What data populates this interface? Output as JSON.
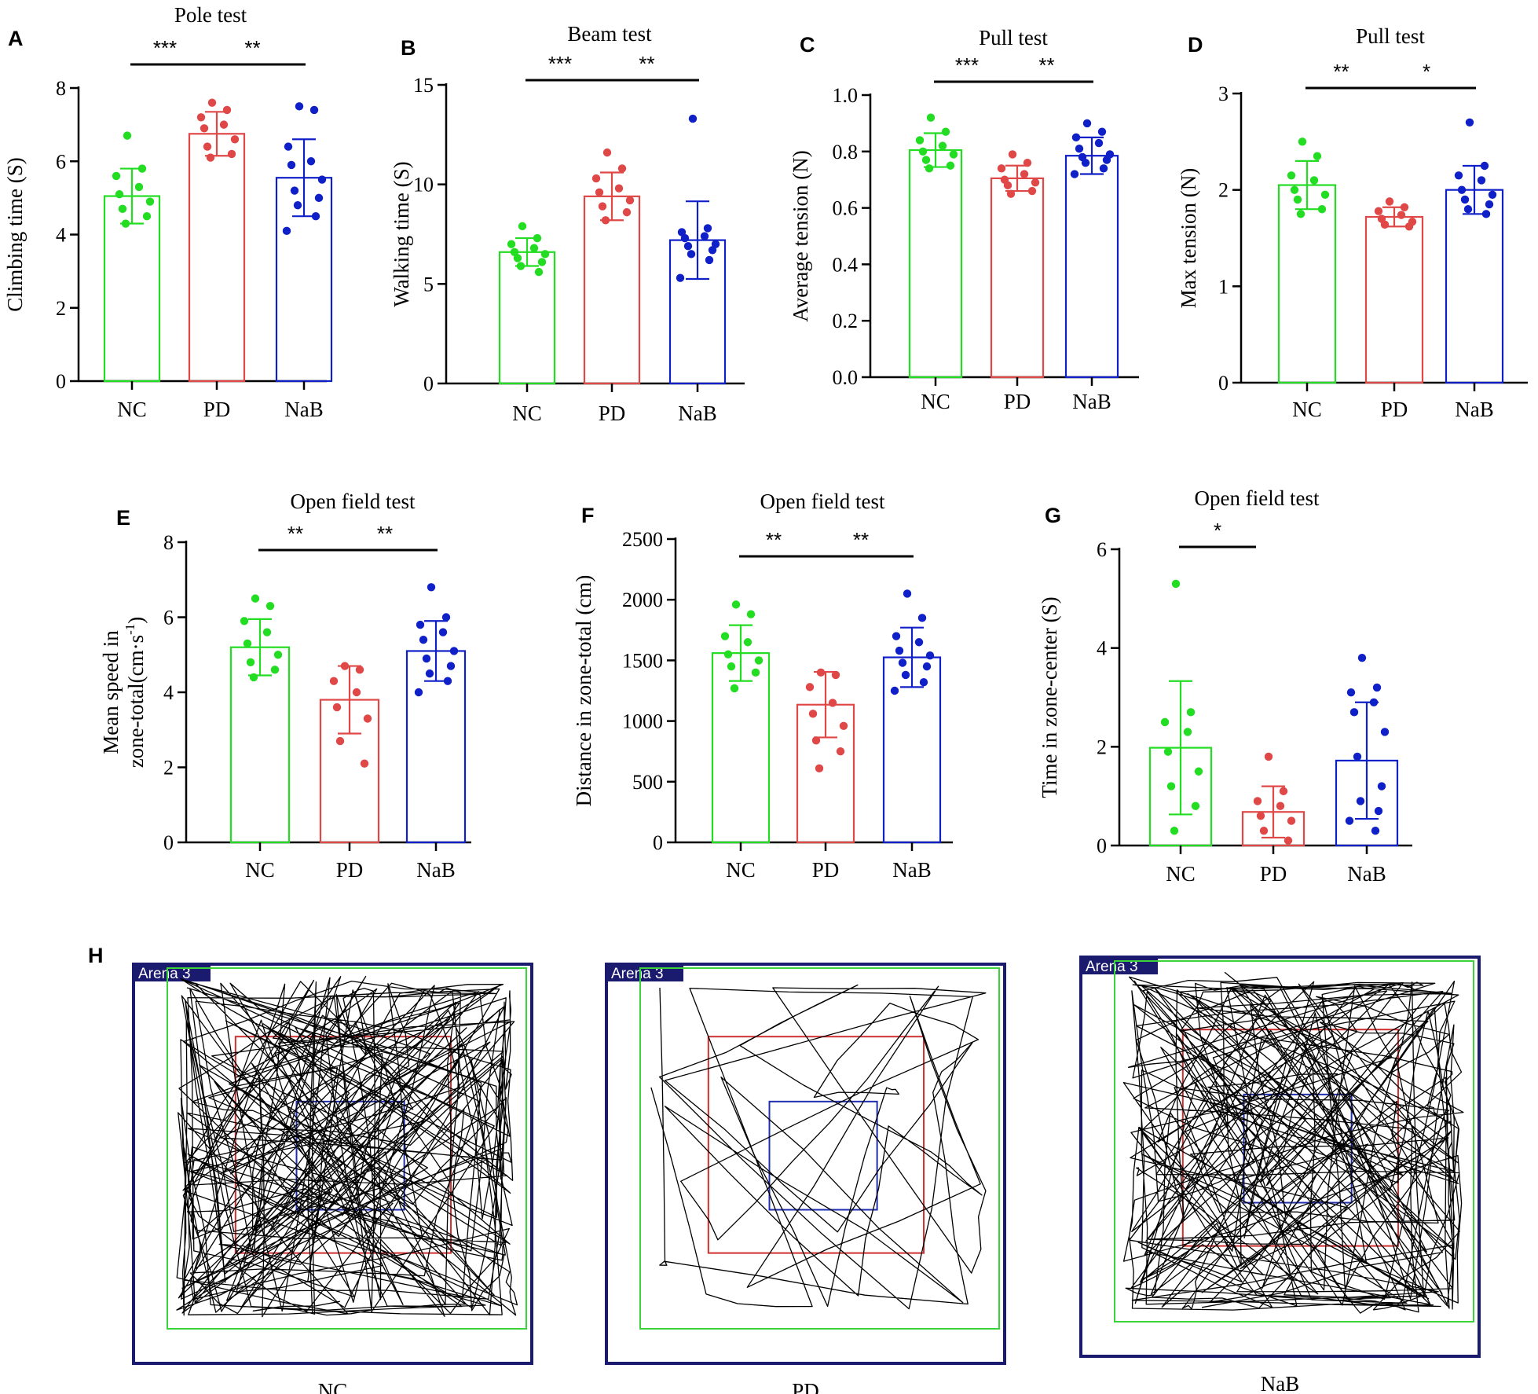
{
  "colors": {
    "NC": "#22dd22",
    "PD": "#e04848",
    "NaB": "#1020c8",
    "axis": "#000000",
    "trackFrame": "#1a1a6e",
    "trackOuter": "#3ad33a",
    "trackMiddle": "#d03030",
    "trackInner": "#1f2fb0"
  },
  "chart_data": [
    {
      "panel": "A",
      "type": "bar",
      "title": "Pole test",
      "ylabel": "Climbing time (S)",
      "categories": [
        "NC",
        "PD",
        "NaB"
      ],
      "ylim": [
        0,
        8
      ],
      "yticks": [
        "0",
        "2",
        "4",
        "6",
        "8"
      ],
      "values": [
        5.05,
        6.75,
        5.55
      ],
      "sd": [
        0.75,
        0.6,
        1.05
      ],
      "points": [
        [
          6.7,
          5.8,
          5.6,
          5.3,
          5.1,
          4.9,
          4.7,
          4.5,
          4.3
        ],
        [
          7.6,
          7.4,
          7.2,
          7.0,
          6.9,
          6.6,
          6.4,
          6.2,
          6.1
        ],
        [
          7.5,
          7.4,
          6.4,
          6.0,
          5.9,
          5.5,
          5.2,
          5.0,
          4.8,
          4.5,
          4.1
        ]
      ],
      "significance": [
        {
          "from": 0,
          "to": 1,
          "label": "***"
        },
        {
          "from": 1,
          "to": 2,
          "label": "**"
        }
      ]
    },
    {
      "panel": "B",
      "type": "bar",
      "title": "Beam test",
      "ylabel": "Walking time (S)",
      "categories": [
        "NC",
        "PD",
        "NaB"
      ],
      "ylim": [
        0,
        15
      ],
      "yticks": [
        "0",
        "5",
        "10",
        "15"
      ],
      "values": [
        6.6,
        9.4,
        7.2
      ],
      "sd": [
        0.7,
        1.2,
        1.95
      ],
      "points": [
        [
          7.9,
          7.3,
          7.0,
          6.8,
          6.6,
          6.5,
          6.3,
          6.1,
          5.9,
          5.6
        ],
        [
          11.6,
          10.8,
          10.3,
          9.8,
          9.6,
          9.2,
          8.9,
          8.6,
          8.2
        ],
        [
          13.3,
          7.8,
          7.6,
          7.4,
          7.3,
          7.0,
          6.9,
          6.7,
          6.5,
          6.2,
          5.3
        ]
      ],
      "significance": [
        {
          "from": 0,
          "to": 1,
          "label": "***"
        },
        {
          "from": 1,
          "to": 2,
          "label": "**"
        }
      ]
    },
    {
      "panel": "C",
      "type": "bar",
      "title": "Pull test",
      "ylabel": "Average tension (N)",
      "categories": [
        "NC",
        "PD",
        "NaB"
      ],
      "ylim": [
        0,
        1.0
      ],
      "yticks": [
        "0.0",
        "0.2",
        "0.4",
        "0.6",
        "0.8",
        "1.0"
      ],
      "values": [
        0.805,
        0.705,
        0.785
      ],
      "sd": [
        0.06,
        0.045,
        0.065
      ],
      "points": [
        [
          0.92,
          0.87,
          0.84,
          0.82,
          0.8,
          0.79,
          0.77,
          0.75,
          0.74
        ],
        [
          0.79,
          0.76,
          0.74,
          0.72,
          0.7,
          0.69,
          0.68,
          0.66,
          0.65
        ],
        [
          0.9,
          0.87,
          0.85,
          0.83,
          0.81,
          0.79,
          0.78,
          0.77,
          0.76,
          0.74,
          0.72
        ]
      ],
      "significance": [
        {
          "from": 0,
          "to": 1,
          "label": "***"
        },
        {
          "from": 1,
          "to": 2,
          "label": "**"
        }
      ]
    },
    {
      "panel": "D",
      "type": "bar",
      "title": "Pull test",
      "ylabel": "Max tension (N)",
      "categories": [
        "NC",
        "PD",
        "NaB"
      ],
      "ylim": [
        0,
        3
      ],
      "yticks": [
        "0",
        "1",
        "2",
        "3"
      ],
      "values": [
        2.05,
        1.72,
        2.0
      ],
      "sd": [
        0.25,
        0.1,
        0.25
      ],
      "points": [
        [
          2.5,
          2.35,
          2.15,
          2.1,
          2.0,
          1.95,
          1.9,
          1.8,
          1.75
        ],
        [
          1.88,
          1.82,
          1.78,
          1.74,
          1.7,
          1.67,
          1.64,
          1.62
        ],
        [
          2.7,
          2.25,
          2.15,
          2.1,
          2.0,
          1.95,
          1.9,
          1.85,
          1.8,
          1.75
        ]
      ],
      "significance": [
        {
          "from": 0,
          "to": 1,
          "label": "**"
        },
        {
          "from": 1,
          "to": 2,
          "label": "*"
        }
      ]
    },
    {
      "panel": "E",
      "type": "bar",
      "title": "Open field test",
      "ylabel": [
        "Mean speed in",
        "zone-total(cm·s",
        "-1",
        ")"
      ],
      "categories": [
        "NC",
        "PD",
        "NaB"
      ],
      "ylim": [
        0,
        8
      ],
      "yticks": [
        "0",
        "2",
        "4",
        "6",
        "8"
      ],
      "values": [
        5.2,
        3.8,
        5.1
      ],
      "sd": [
        0.75,
        0.9,
        0.8
      ],
      "points": [
        [
          6.5,
          6.3,
          5.9,
          5.6,
          5.3,
          5.0,
          4.8,
          4.6,
          4.4
        ],
        [
          4.7,
          4.6,
          4.3,
          4.0,
          3.6,
          3.3,
          2.7,
          2.1
        ],
        [
          6.8,
          6.0,
          5.8,
          5.6,
          5.4,
          5.1,
          4.9,
          4.7,
          4.5,
          4.3,
          4.0
        ]
      ],
      "significance": [
        {
          "from": 0,
          "to": 1,
          "label": "**"
        },
        {
          "from": 1,
          "to": 2,
          "label": "**"
        }
      ]
    },
    {
      "panel": "F",
      "type": "bar",
      "title": "Open field test",
      "ylabel": "Distance in zone-total (cm)",
      "categories": [
        "NC",
        "PD",
        "NaB"
      ],
      "ylim": [
        0,
        2500
      ],
      "yticks": [
        "0",
        "500",
        "1000",
        "1500",
        "2000",
        "2500"
      ],
      "values": [
        1560,
        1135,
        1525
      ],
      "sd": [
        230,
        270,
        245
      ],
      "points": [
        [
          1960,
          1880,
          1700,
          1650,
          1550,
          1500,
          1450,
          1400,
          1270
        ],
        [
          1400,
          1380,
          1280,
          1150,
          1060,
          960,
          840,
          750,
          610
        ],
        [
          2050,
          1850,
          1700,
          1650,
          1580,
          1540,
          1480,
          1450,
          1380,
          1320,
          1250
        ]
      ],
      "significance": [
        {
          "from": 0,
          "to": 1,
          "label": "**"
        },
        {
          "from": 1,
          "to": 2,
          "label": "**"
        }
      ]
    },
    {
      "panel": "G",
      "type": "bar",
      "title": "Open field test",
      "ylabel": "Time in zone-center (S)",
      "categories": [
        "NC",
        "PD",
        "NaB"
      ],
      "ylim": [
        0,
        6
      ],
      "yticks": [
        "0",
        "2",
        "4",
        "6"
      ],
      "values": [
        1.98,
        0.68,
        1.72
      ],
      "sd": [
        1.35,
        0.52,
        1.18
      ],
      "points": [
        [
          5.3,
          2.7,
          2.5,
          2.3,
          1.9,
          1.5,
          1.2,
          0.8,
          0.3
        ],
        [
          1.8,
          1.1,
          0.9,
          0.8,
          0.6,
          0.5,
          0.3,
          0.1
        ],
        [
          3.8,
          3.2,
          3.1,
          2.9,
          2.7,
          2.3,
          1.8,
          1.2,
          0.9,
          0.7,
          0.5,
          0.3
        ]
      ],
      "significance": [
        {
          "from": 0,
          "to": 1,
          "label": "*"
        }
      ]
    }
  ],
  "panel_h": {
    "label": "H",
    "arenas": [
      {
        "tag": "Arena 3",
        "caption": "NC"
      },
      {
        "tag": "Arena 3",
        "caption": "PD"
      },
      {
        "tag": "Arena 3",
        "caption": "NaB"
      }
    ]
  }
}
